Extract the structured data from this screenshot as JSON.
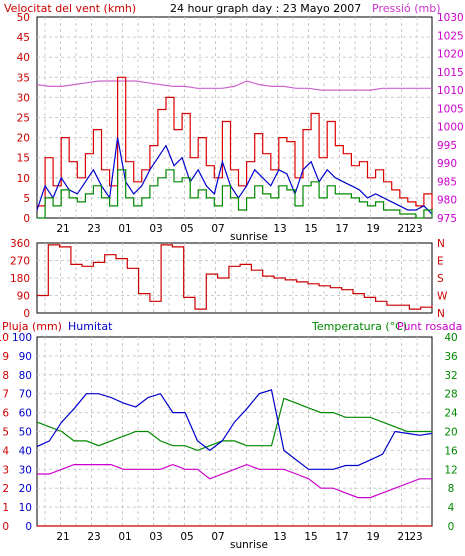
{
  "chart_data": [
    {
      "type": "line",
      "title": "24 hour graph day : 23 Mayo 2007",
      "ylabel_left": "Velocitat del vent (kmh)",
      "ylabel_right": "Pressió (mb)",
      "x_ticks": [
        "21",
        "23",
        "01",
        "03",
        "05",
        "07",
        "sunrise",
        "13",
        "15",
        "17",
        "19",
        "21",
        "23"
      ],
      "left_ticks": [
        "0",
        "5",
        "10",
        "15",
        "20",
        "25",
        "30",
        "35",
        "40",
        "45",
        "50"
      ],
      "right_ticks": [
        "975",
        "980",
        "985",
        "990",
        "995",
        "1000",
        "1005",
        "1010",
        "1015",
        "1020",
        "1025",
        "1030"
      ],
      "ylim_left": [
        0,
        50
      ],
      "ylim_right": [
        975,
        1030
      ],
      "series": [
        {
          "color": "#cc66cc",
          "axis": "right",
          "values": [
            1011.5,
            1011,
            1011,
            1011.5,
            1012,
            1012.5,
            1012.5,
            1012.5,
            1012.5,
            1012,
            1011.5,
            1011,
            1011,
            1010.5,
            1010.5,
            1010.5,
            1011,
            1012.5,
            1011.5,
            1011,
            1011,
            1010.5,
            1010.5,
            1010,
            1010,
            1010,
            1010,
            1010,
            1010.5,
            1010.5,
            1010.5,
            1010.5,
            1010.5
          ]
        },
        {
          "color": "#dd0000",
          "axis": "left",
          "values": [
            3,
            15,
            8,
            20,
            14,
            10,
            16,
            22,
            12,
            8,
            35,
            14,
            9,
            12,
            18,
            27,
            30,
            22,
            26,
            15,
            20,
            13,
            10,
            24,
            12,
            8,
            14,
            21,
            16,
            12,
            20,
            19,
            10,
            22,
            26,
            15,
            24,
            18,
            16,
            13,
            14,
            10,
            12,
            9,
            7,
            5,
            4,
            3,
            6,
            2
          ]
        },
        {
          "color": "#0000cc",
          "axis": "left",
          "values": [
            2,
            8,
            5,
            10,
            7,
            6,
            9,
            12,
            8,
            5,
            20,
            9,
            6,
            8,
            12,
            15,
            18,
            13,
            15,
            9,
            12,
            8,
            6,
            14,
            8,
            5,
            8,
            12,
            10,
            8,
            12,
            11,
            6,
            12,
            14,
            9,
            12,
            10,
            9,
            8,
            7,
            5,
            6,
            5,
            4,
            3,
            2,
            2,
            3,
            1
          ]
        },
        {
          "color": "#008800",
          "axis": "left",
          "values": [
            0,
            5,
            3,
            7,
            5,
            4,
            6,
            8,
            5,
            3,
            12,
            5,
            3,
            5,
            8,
            10,
            12,
            9,
            10,
            5,
            7,
            5,
            3,
            8,
            5,
            2,
            5,
            8,
            6,
            5,
            8,
            7,
            3,
            8,
            9,
            5,
            8,
            6,
            6,
            5,
            4,
            3,
            4,
            2,
            2,
            1,
            1,
            0,
            2,
            0
          ]
        }
      ]
    },
    {
      "type": "line",
      "ylabel_right": "N W S E N",
      "left_ticks": [
        "0",
        "90",
        "180",
        "270",
        "360"
      ],
      "right_ticks": [
        "N",
        "W",
        "S",
        "E",
        "N"
      ],
      "ylim": [
        0,
        360
      ],
      "series": [
        {
          "color": "#cc0000",
          "values": [
            90,
            350,
            340,
            250,
            240,
            260,
            300,
            280,
            230,
            100,
            60,
            350,
            340,
            80,
            20,
            200,
            180,
            240,
            250,
            220,
            190,
            180,
            170,
            160,
            150,
            140,
            130,
            120,
            100,
            80,
            60,
            40,
            40,
            20,
            30,
            40
          ]
        }
      ]
    },
    {
      "type": "line",
      "labels": {
        "rain": "Pluja (mm)",
        "humidity": "Humitat",
        "temp": "Temperatura (°C)",
        "dew": "Punt rosada"
      },
      "left_ticks_rain": [
        "0",
        "1",
        "2",
        "3",
        "4",
        "5",
        "6",
        "7",
        "8",
        "9",
        "10"
      ],
      "left_ticks_hum": [
        "0",
        "10",
        "20",
        "30",
        "40",
        "50",
        "60",
        "70",
        "80",
        "90",
        "100"
      ],
      "right_ticks": [
        "0",
        "4",
        "8",
        "12",
        "16",
        "20",
        "24",
        "28",
        "32",
        "36",
        "40"
      ],
      "ylim_left": [
        0,
        100
      ],
      "ylim_right": [
        0,
        40
      ],
      "series": [
        {
          "color": "#0000cc",
          "axis": "left",
          "values": [
            42,
            45,
            55,
            62,
            70,
            70,
            68,
            65,
            63,
            68,
            70,
            60,
            60,
            45,
            40,
            45,
            55,
            62,
            70,
            72,
            40,
            35,
            30,
            30,
            30,
            32,
            32,
            35,
            38,
            50,
            49,
            48,
            49
          ]
        },
        {
          "color": "#008800",
          "axis": "right",
          "values": [
            22,
            21,
            20,
            18,
            18,
            17,
            18,
            19,
            20,
            20,
            18,
            17,
            17,
            16,
            17,
            18,
            18,
            17,
            17,
            17,
            27,
            26,
            25,
            24,
            24,
            23,
            23,
            23,
            22,
            21,
            20,
            20,
            20
          ]
        },
        {
          "color": "#cc00cc",
          "axis": "right",
          "values": [
            11,
            11,
            12,
            13,
            13,
            13,
            13,
            12,
            12,
            12,
            12,
            13,
            12,
            12,
            10,
            11,
            12,
            13,
            12,
            12,
            12,
            11,
            10,
            8,
            8,
            7,
            6,
            6,
            7,
            8,
            9,
            10,
            10
          ]
        },
        {
          "color": "#cc0000",
          "axis": "left",
          "values": [
            0,
            0,
            0,
            0,
            0,
            0,
            0,
            0,
            0,
            0,
            0,
            0,
            0,
            0,
            0,
            0,
            0,
            0,
            0,
            0,
            0,
            0,
            0,
            0,
            0,
            0,
            0,
            0,
            0,
            0,
            0,
            0,
            0
          ]
        }
      ]
    }
  ]
}
